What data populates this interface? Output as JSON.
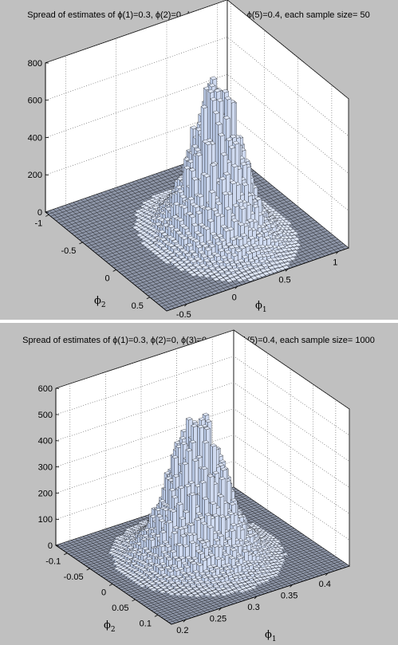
{
  "bar_color": "#b9c8e4",
  "floor_color": "#8e96a8",
  "chart_data": [
    {
      "type": "bar3d",
      "title": "Spread of estimates of ϕ(1)=0.3, ϕ(2)=0, ϕ(3)=0, ϕ(4)=0, ϕ(5)=0.4, each sample size= 50",
      "x_axis": {
        "symbol": "ϕ",
        "subscript": "1",
        "ticks": [
          "-0.5",
          "0",
          "0.5",
          "1"
        ],
        "range": [
          -0.7,
          1.1
        ]
      },
      "y_axis": {
        "symbol": "ϕ",
        "subscript": "2",
        "ticks": [
          "-1",
          "-0.5",
          "0",
          "0.5"
        ],
        "range": [
          -1.05,
          0.75
        ]
      },
      "z_axis": {
        "ticks": [
          "0",
          "200",
          "400",
          "600",
          "800"
        ],
        "range": [
          0,
          800
        ]
      },
      "peak": {
        "x": 0.3,
        "y": 0.0,
        "z": 740
      },
      "grid": "on"
    },
    {
      "type": "bar3d",
      "title": "Spread of estimates of ϕ(1)=0.3, ϕ(2)=0, ϕ(3)=0, ϕ(4)=0, ϕ(5)=0.4, each sample size= 1000",
      "x_axis": {
        "symbol": "ϕ",
        "subscript": "1",
        "ticks": [
          "0.2",
          "0.25",
          "0.3",
          "0.35",
          "0.4"
        ],
        "range": [
          0.18,
          0.43
        ]
      },
      "y_axis": {
        "symbol": "ϕ",
        "subscript": "2",
        "ticks": [
          "-0.1",
          "-0.05",
          "0",
          "0.05",
          "0.1"
        ],
        "range": [
          -0.125,
          0.13
        ]
      },
      "z_axis": {
        "ticks": [
          "0",
          "100",
          "200",
          "300",
          "400",
          "500",
          "600"
        ],
        "range": [
          0,
          600
        ]
      },
      "peak": {
        "x": 0.3,
        "y": 0.0,
        "z": 470
      },
      "grid": "on"
    }
  ]
}
